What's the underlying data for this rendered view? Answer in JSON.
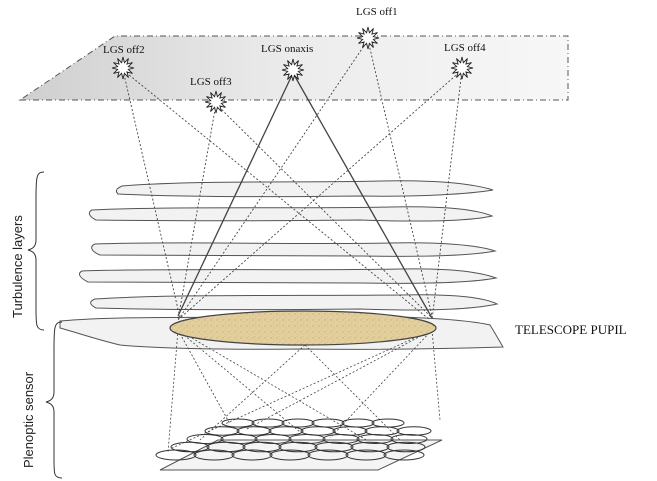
{
  "labels": {
    "lgs_off1": "LGS off1",
    "lgs_off2": "LGS off2",
    "lgs_off3": "LGS off3",
    "lgs_onaxis": "LGS onaxis",
    "lgs_off4": "LGS off4",
    "turbulence_layers": "Turbulence layers",
    "plenoptic_sensor": "Plenoptic sensor",
    "telescope_pupil": "TELESCOPE PUPIL"
  },
  "colors": {
    "plane_fill": "#e4e4e4",
    "layer_fill": "#f0f0f0",
    "pupil_fill": "#e3cf9e",
    "line": "#333333"
  }
}
